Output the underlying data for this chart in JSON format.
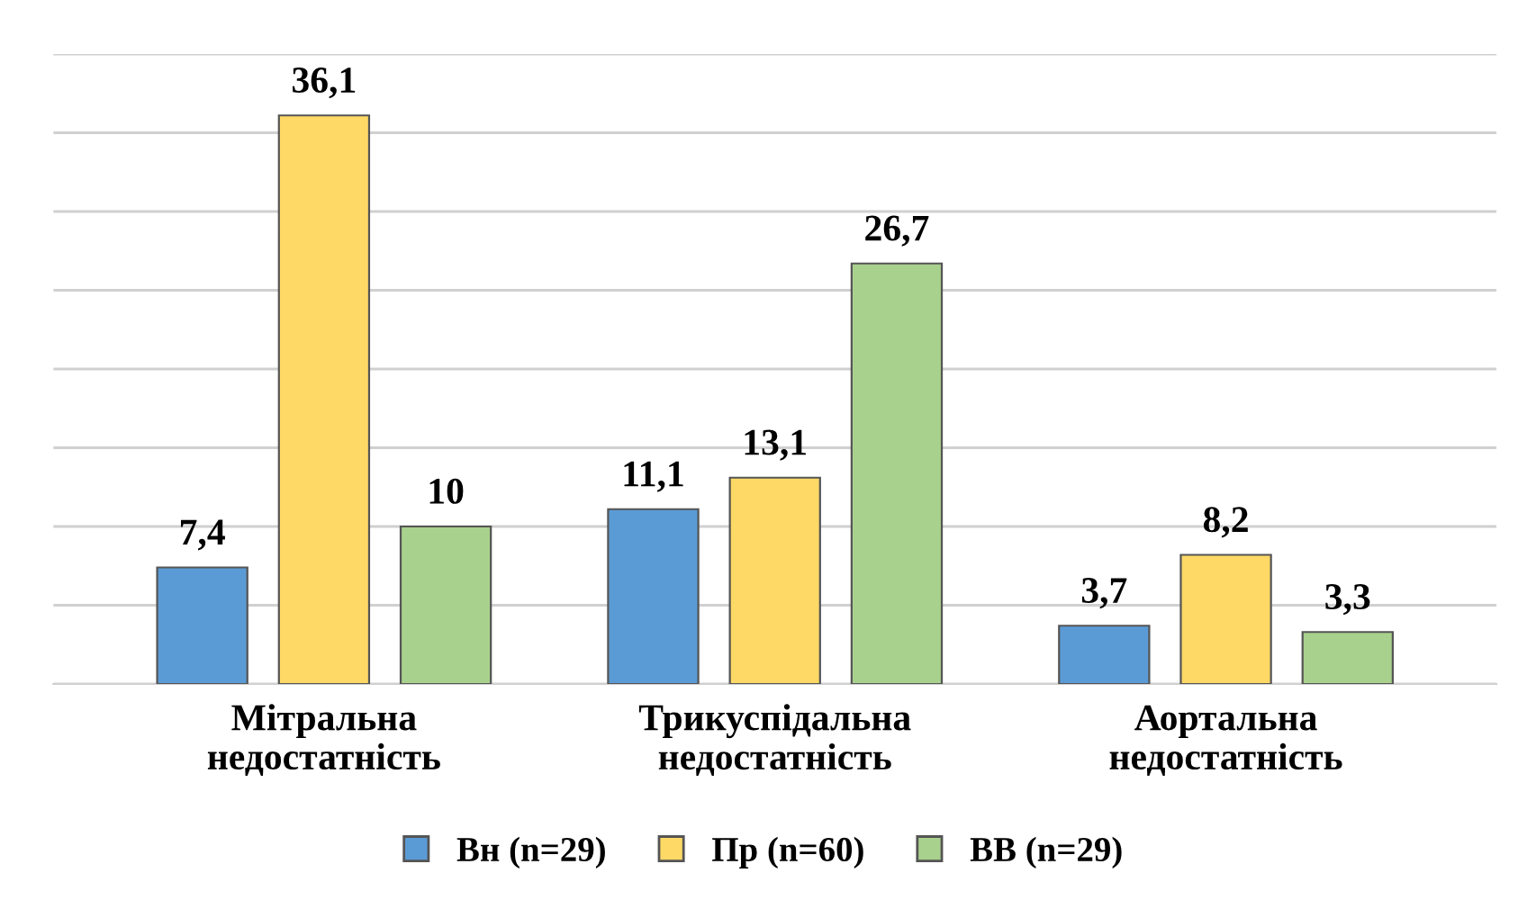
{
  "chart_data": {
    "type": "bar",
    "categories": [
      "Мітральна\nнедостатність",
      "Трикуспідальна\nнедостатність",
      "Аортальна\nнедостатність"
    ],
    "series": [
      {
        "name": "Вн (n=29)",
        "color": "#5b9bd5",
        "values": [
          7.4,
          11.1,
          3.7
        ],
        "value_labels": [
          "7,4",
          "11,1",
          "3,7"
        ]
      },
      {
        "name": "Пр (n=60)",
        "color": "#ffd966",
        "values": [
          36.1,
          13.1,
          8.2
        ],
        "value_labels": [
          "36,1",
          "13,1",
          "8,2"
        ]
      },
      {
        "name": "ВВ (n=29)",
        "color": "#a9d18e",
        "values": [
          10,
          26.7,
          3.3
        ],
        "value_labels": [
          "10",
          "26,7",
          "3,3"
        ]
      }
    ],
    "ylim": [
      0,
      40
    ],
    "yticks": [
      {
        "value": 0,
        "label": null
      },
      {
        "value": 5,
        "label": null
      },
      {
        "value": 10,
        "label": null
      },
      {
        "value": 15,
        "label": null
      },
      {
        "value": 20,
        "label": null
      },
      {
        "value": 25,
        "label": null
      },
      {
        "value": 30,
        "label": null
      },
      {
        "value": 35,
        "label": null
      },
      {
        "value": 40,
        "label": null
      }
    ],
    "grid": "y",
    "legend": "bottom",
    "tick_labels": "x"
  }
}
